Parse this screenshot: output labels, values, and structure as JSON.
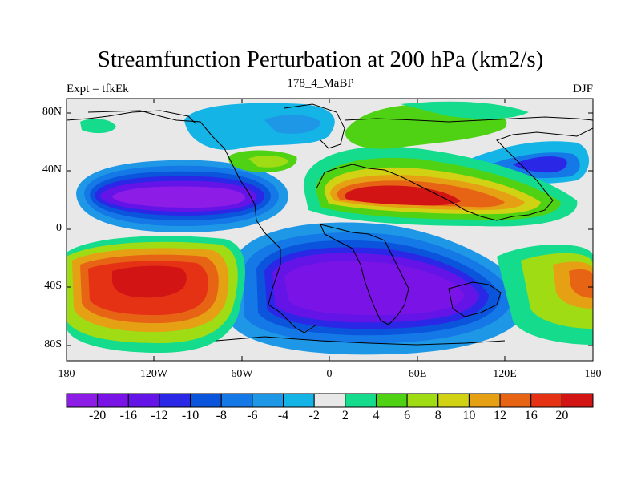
{
  "title": "Streamfunction Perturbation at 200 hPa (km2/s)",
  "subtitle_left": "Expt = tfkEk",
  "subtitle_center": "178_4_MaBP",
  "subtitle_right": "DJF",
  "axes": {
    "y_ticks": [
      "80N",
      "40N",
      "0",
      "40S",
      "80S"
    ],
    "x_ticks": [
      "180",
      "120W",
      "60W",
      "0",
      "60E",
      "120E",
      "180"
    ]
  },
  "colorbar": {
    "labels": [
      "-20",
      "-16",
      "-12",
      "-10",
      "-8",
      "-6",
      "-4",
      "-2",
      "2",
      "4",
      "6",
      "8",
      "10",
      "12",
      "16",
      "20"
    ],
    "colors": [
      "#8c1ce6",
      "#7a14e6",
      "#6414e6",
      "#2a28e6",
      "#0a55dc",
      "#1478e6",
      "#1e98e6",
      "#14b4e6",
      "#e8e8e8",
      "#14dc8c",
      "#50d214",
      "#a0dc14",
      "#d2d214",
      "#e6a014",
      "#e66414",
      "#e63214",
      "#d21414"
    ]
  }
}
